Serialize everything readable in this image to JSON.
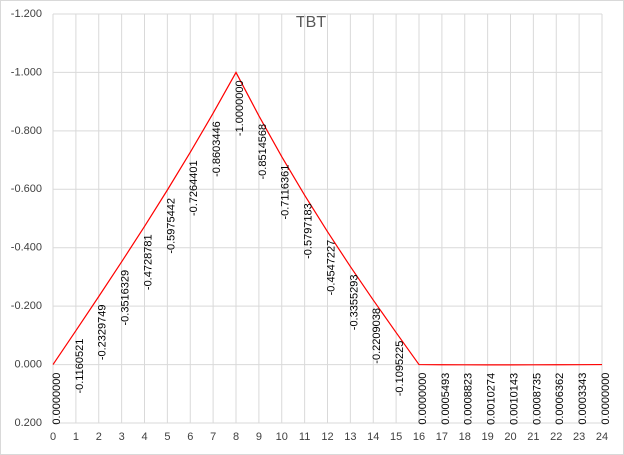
{
  "chart_data": {
    "type": "line",
    "title": "TBT",
    "categories": [
      0,
      1,
      2,
      3,
      4,
      5,
      6,
      7,
      8,
      9,
      10,
      11,
      12,
      13,
      14,
      15,
      16,
      17,
      18,
      19,
      20,
      21,
      22,
      23,
      24
    ],
    "series": [
      {
        "color": "#ff0000",
        "values": [
          0.0,
          -0.1160521,
          -0.2329749,
          -0.3516329,
          -0.4728781,
          -0.5975442,
          -0.7264401,
          -0.8603446,
          -1.0,
          -0.8514568,
          -0.7116361,
          -0.5797183,
          -0.4547227,
          -0.3355293,
          -0.2209038,
          -0.1095225,
          0.0,
          0.0005493,
          0.0008823,
          0.0010274,
          0.0010143,
          0.0008735,
          0.0006362,
          0.0003343,
          0.0
        ],
        "value_labels": [
          "0.0000000",
          "-0.1160521",
          "-0.2329749",
          "-0.3516329",
          "-0.4728781",
          "-0.5975442",
          "-0.7264401",
          "-0.8603446",
          "-1.0000000",
          "-0.8514568",
          "-0.7116361",
          "-0.5797183",
          "-0.4547227",
          "-0.3355293",
          "-0.2209038",
          "-0.1095225",
          "0.0000000",
          "0.0005493",
          "0.0008823",
          "0.0010274",
          "0.0010143",
          "0.0008735",
          "0.0006362",
          "0.0003343",
          "0.0000000"
        ]
      }
    ],
    "ylim": [
      -1.2,
      0.2
    ],
    "y_reversed": true,
    "yticks": [
      {
        "value": -1.2,
        "label": "-1.200"
      },
      {
        "value": -1.0,
        "label": "-1.000"
      },
      {
        "value": -0.8,
        "label": "-0.800"
      },
      {
        "value": -0.6,
        "label": "-0.600"
      },
      {
        "value": -0.4,
        "label": "-0.400"
      },
      {
        "value": -0.2,
        "label": "-0.200"
      },
      {
        "value": 0,
        "label": "0.000"
      },
      {
        "value": 0.2,
        "label": "0.200"
      }
    ],
    "grid": true
  }
}
